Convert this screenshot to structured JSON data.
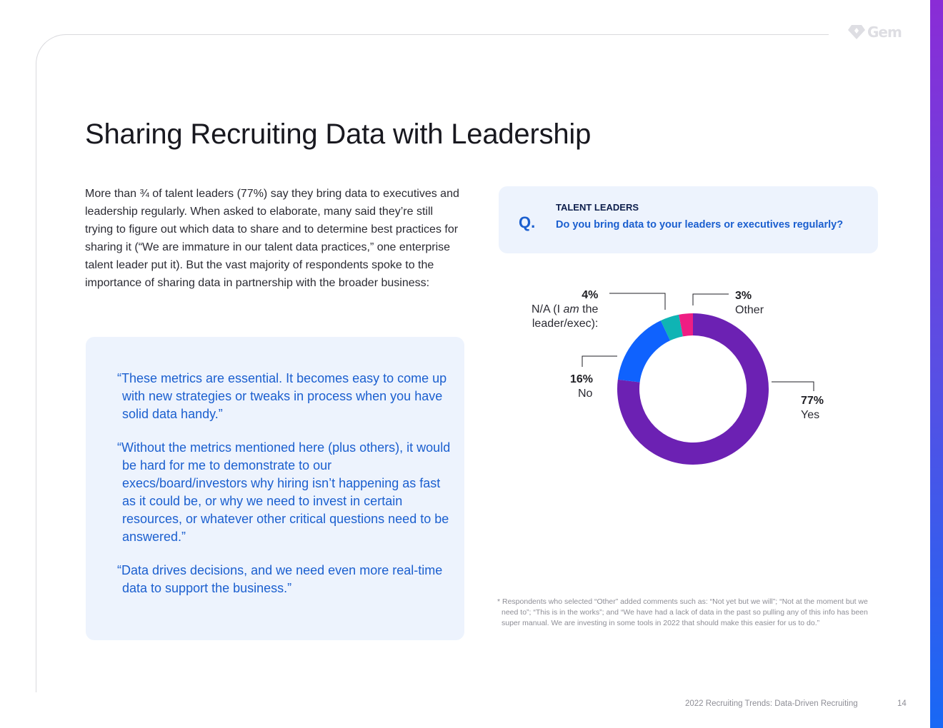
{
  "brand": {
    "logo_text": "Gem",
    "accent": "#1b5fcf"
  },
  "page": {
    "title": "Sharing Recruiting Data with Leadership",
    "intro": "More than ¾ of talent leaders (77%) say they bring data to executives and leadership regularly. When asked to elaborate, many said they’re still trying to figure out which data to share and to determine best practices for sharing it (“We are immature in our talent data practices,” one enterprise talent leader put it). But the vast majority of respondents spoke to the importance of sharing data in partnership with the broader business:"
  },
  "quotes": [
    "“These metrics are essential. It becomes easy to come up with new strategies or tweaks in process when you have solid data handy.”",
    "“Without the metrics mentioned here (plus others), it would be hard for me to demonstrate to our execs/board/investors why hiring isn’t happening as fast as it could be, or why we need to invest in certain resources, or whatever other critical questions need to be answered.”",
    "“Data drives decisions, and we need even more real-time data to support the business.”"
  ],
  "question": {
    "mark": "Q.",
    "audience": "TALENT LEADERS",
    "text": "Do you bring data to your leaders or executives regularly?"
  },
  "chart_data": {
    "type": "pie",
    "style": "donut",
    "slices": [
      {
        "label": "Yes",
        "value": 77,
        "pct_label": "77%",
        "color": "#6c21b3"
      },
      {
        "label": "No",
        "value": 16,
        "pct_label": "16%",
        "color": "#0f62fe"
      },
      {
        "label": "N/A (I am the leader/exec):",
        "label_pre": "N/A (I ",
        "label_em": "am",
        "label_post": " the",
        "label_line2": "leader/exec):",
        "value": 4,
        "pct_label": "4%",
        "color": "#0fb4b4"
      },
      {
        "label": "Other",
        "value": 3,
        "pct_label": "3%",
        "color": "#ee1e83"
      }
    ]
  },
  "footnote": "* Respondents who selected “Other” added comments such as: “Not yet but we will”; “Not at the moment but we need to”; “This is in the works”; and “We have had a lack of data in the past so pulling any of this info has been super manual. We are investing in some tools in 2022 that should make this easier for us to do.”",
  "footer": {
    "publication": "2022 Recruiting Trends: Data-Driven Recruiting",
    "page_number": "14"
  }
}
